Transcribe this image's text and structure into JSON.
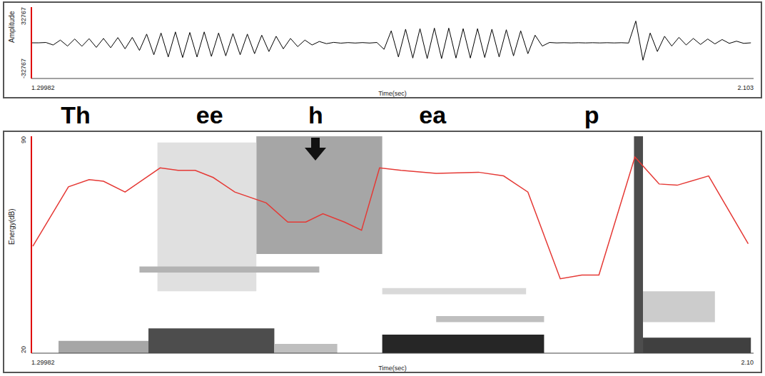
{
  "chart_data": [
    {
      "type": "line",
      "y_label": "Amplitude",
      "x_label": "Time(sec)",
      "xlim": [
        1.29982,
        2.103
      ],
      "xticks": [
        1.29982,
        2.103
      ],
      "ylim": [
        -32767,
        32767
      ],
      "yticks": [
        -32767,
        32767
      ],
      "color": "#000000",
      "x": [
        1.3,
        1.308,
        1.316,
        1.324,
        1.332,
        1.34,
        1.348,
        1.356,
        1.364,
        1.372,
        1.38,
        1.388,
        1.396,
        1.404,
        1.412,
        1.42,
        1.428,
        1.436,
        1.444,
        1.452,
        1.46,
        1.468,
        1.476,
        1.484,
        1.492,
        1.5,
        1.508,
        1.516,
        1.524,
        1.532,
        1.54,
        1.548,
        1.556,
        1.564,
        1.572,
        1.58,
        1.588,
        1.596,
        1.604,
        1.612,
        1.62,
        1.628,
        1.636,
        1.644,
        1.652,
        1.66,
        1.668,
        1.676,
        1.684,
        1.692,
        1.7,
        1.708,
        1.716,
        1.724,
        1.732,
        1.74,
        1.748,
        1.756,
        1.764,
        1.772,
        1.78,
        1.788,
        1.796,
        1.804,
        1.812,
        1.82,
        1.828,
        1.836,
        1.844,
        1.852,
        1.86,
        1.868,
        1.876,
        1.884,
        1.892,
        1.9,
        1.908,
        1.916,
        1.924,
        1.932,
        1.94,
        1.948,
        1.956,
        1.964,
        1.972,
        1.98,
        1.988,
        1.996,
        2.004,
        2.012,
        2.02,
        2.028,
        2.036,
        2.044,
        2.052,
        2.06,
        2.068,
        2.076,
        2.084,
        2.092,
        2.1
      ],
      "values": [
        0,
        0,
        300,
        -2000,
        2500,
        -3000,
        3500,
        -3200,
        3800,
        -4200,
        4000,
        -4500,
        4800,
        -5500,
        5000,
        -7000,
        8000,
        -11000,
        9000,
        -13000,
        10000,
        -13500,
        9500,
        -13000,
        10000,
        -12500,
        9000,
        -12000,
        8500,
        -11000,
        8000,
        -10000,
        7000,
        -8000,
        6000,
        -5500,
        4000,
        -3500,
        2500,
        -2000,
        1200,
        -800,
        400,
        -300,
        200,
        -200,
        200,
        -200,
        300,
        -6000,
        11000,
        -13000,
        12500,
        -14000,
        13000,
        -14500,
        13500,
        -14500,
        13500,
        -14000,
        13000,
        -14000,
        13000,
        -13500,
        12500,
        -13000,
        12000,
        -12000,
        11000,
        -10000,
        7000,
        -3000,
        300,
        -100,
        100,
        -100,
        100,
        -100,
        100,
        -100,
        100,
        -100,
        100,
        -200,
        20000,
        -16000,
        9000,
        -8000,
        6000,
        -3000,
        5000,
        -2000,
        4000,
        -1500,
        3500,
        -1000,
        3000,
        -500,
        1500,
        -500,
        0
      ]
    },
    {
      "type": "line",
      "y_label": "Energy(dB)",
      "x_label": "Time(sec)",
      "xlim": [
        1.29982,
        2.103
      ],
      "xticks": [
        1.29982,
        {
          "value": 2.103,
          "label": "2.10"
        }
      ],
      "ylim": [
        20,
        90
      ],
      "yticks": [
        20,
        90
      ],
      "color": "#e53935",
      "x": [
        1.3014,
        1.341,
        1.364,
        1.38,
        1.404,
        1.443,
        1.463,
        1.482,
        1.502,
        1.526,
        1.561,
        1.585,
        1.605,
        1.624,
        1.648,
        1.667,
        1.687,
        1.711,
        1.75,
        1.797,
        1.825,
        1.852,
        1.888,
        1.912,
        1.931,
        1.971,
        1.998,
        2.018,
        2.053,
        2.097
      ],
      "values": [
        54.5,
        73.7,
        76,
        75.5,
        72,
        79.8,
        79,
        79,
        76.7,
        72,
        68.5,
        62.3,
        62.3,
        65,
        62.3,
        59.7,
        79.8,
        79,
        78,
        78.4,
        77.2,
        72,
        44,
        45.2,
        45.2,
        83.3,
        74.6,
        74.2,
        77.2,
        55.3
      ],
      "spectrogram": [
        {
          "x0": 1.33,
          "x1": 1.43,
          "y0": 20,
          "y1": 24,
          "level": 0.35
        },
        {
          "x0": 1.43,
          "x1": 1.57,
          "y0": 20,
          "y1": 28,
          "level": 0.7
        },
        {
          "x0": 1.57,
          "x1": 1.64,
          "y0": 20,
          "y1": 23,
          "level": 0.25
        },
        {
          "x0": 1.69,
          "x1": 1.87,
          "y0": 20,
          "y1": 26,
          "level": 0.85
        },
        {
          "x0": 1.97,
          "x1": 1.98,
          "y0": 20,
          "y1": 90,
          "level": 0.7
        },
        {
          "x0": 1.98,
          "x1": 2.1,
          "y0": 20,
          "y1": 25,
          "level": 0.75
        },
        {
          "x0": 1.55,
          "x1": 1.69,
          "y0": 52,
          "y1": 90,
          "level": 0.35
        },
        {
          "x0": 1.44,
          "x1": 1.55,
          "y0": 40,
          "y1": 88,
          "level": 0.12
        },
        {
          "x0": 1.42,
          "x1": 1.62,
          "y0": 46,
          "y1": 48,
          "level": 0.3
        },
        {
          "x0": 1.75,
          "x1": 1.87,
          "y0": 30,
          "y1": 32,
          "level": 0.25
        },
        {
          "x0": 1.98,
          "x1": 2.06,
          "y0": 30,
          "y1": 40,
          "level": 0.2
        },
        {
          "x0": 1.69,
          "x1": 1.85,
          "y0": 39,
          "y1": 41,
          "level": 0.15
        }
      ],
      "annotations": [
        {
          "text": "Th",
          "x": 1.349
        },
        {
          "text": "ee",
          "x": 1.498
        },
        {
          "text": "h",
          "x": 1.616,
          "marker": "arrow"
        },
        {
          "text": "ea",
          "x": 1.746
        },
        {
          "text": "p",
          "x": 1.923
        }
      ]
    }
  ]
}
